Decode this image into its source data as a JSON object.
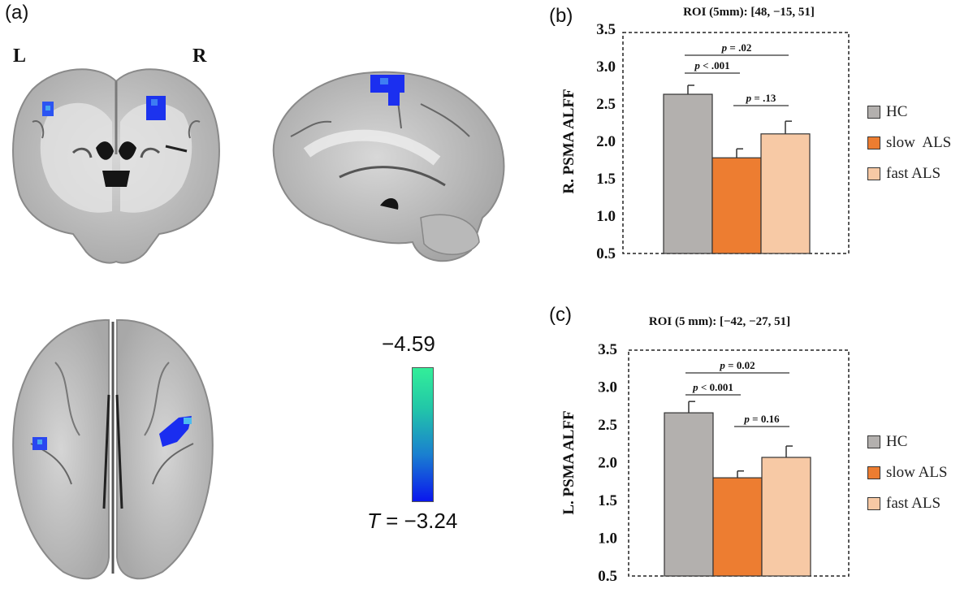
{
  "panels": {
    "a": "(a)",
    "b": "(b)",
    "c": "(c)"
  },
  "brain": {
    "left_label": "L",
    "right_label": "R"
  },
  "colorbar": {
    "max_label": "−4.59",
    "min_label_prefix": "T",
    "min_label_value": " = −3.24",
    "colors": [
      "#33ee99",
      "#0a16ee"
    ]
  },
  "chart_data": [
    {
      "type": "bar",
      "title": "ROI (5mm): [48, −15, 51]",
      "ylabel": "R. PSMA ALFF",
      "xlabel": "",
      "ylim": [
        0.5,
        3.5
      ],
      "yticks": [
        "0.5",
        "1.0",
        "1.5",
        "2.0",
        "2.5",
        "3.0",
        "3.5"
      ],
      "categories": [
        "HC",
        "slow  ALS",
        "fast ALS"
      ],
      "values": [
        2.63,
        1.78,
        2.1
      ],
      "errors": [
        0.12,
        0.12,
        0.17
      ],
      "colors": [
        "#b3b0ae",
        "#ed7d31",
        "#f7c9a5"
      ],
      "comparisons": [
        {
          "from": 0,
          "to": 2,
          "p": "p",
          "label": " = .02"
        },
        {
          "from": 0,
          "to": 1,
          "p": "p",
          "label": " < .001"
        },
        {
          "from": 1,
          "to": 2,
          "p": "p",
          "label": " = .13"
        }
      ],
      "legend": [
        "HC",
        "slow  ALS",
        "fast ALS"
      ]
    },
    {
      "type": "bar",
      "title": "ROI (5 mm): [−42, −27, 51]",
      "ylabel": "L. PSMA ALFF",
      "xlabel": "",
      "ylim": [
        0.5,
        3.5
      ],
      "yticks": [
        "0.5",
        "1.0",
        "1.5",
        "2.0",
        "2.5",
        "3.0",
        "3.5"
      ],
      "categories": [
        "HC",
        "slow ALS",
        "fast ALS"
      ],
      "values": [
        2.66,
        1.8,
        2.07
      ],
      "errors": [
        0.15,
        0.09,
        0.15
      ],
      "colors": [
        "#b3b0ae",
        "#ed7d31",
        "#f7c9a5"
      ],
      "comparisons": [
        {
          "from": 0,
          "to": 2,
          "p": "p",
          "label": " = 0.02"
        },
        {
          "from": 0,
          "to": 1,
          "p": "p",
          "label": " < 0.001"
        },
        {
          "from": 1,
          "to": 2,
          "p": "p",
          "label": " = 0.16"
        }
      ],
      "legend": [
        "HC",
        "slow ALS",
        "fast ALS"
      ]
    }
  ]
}
